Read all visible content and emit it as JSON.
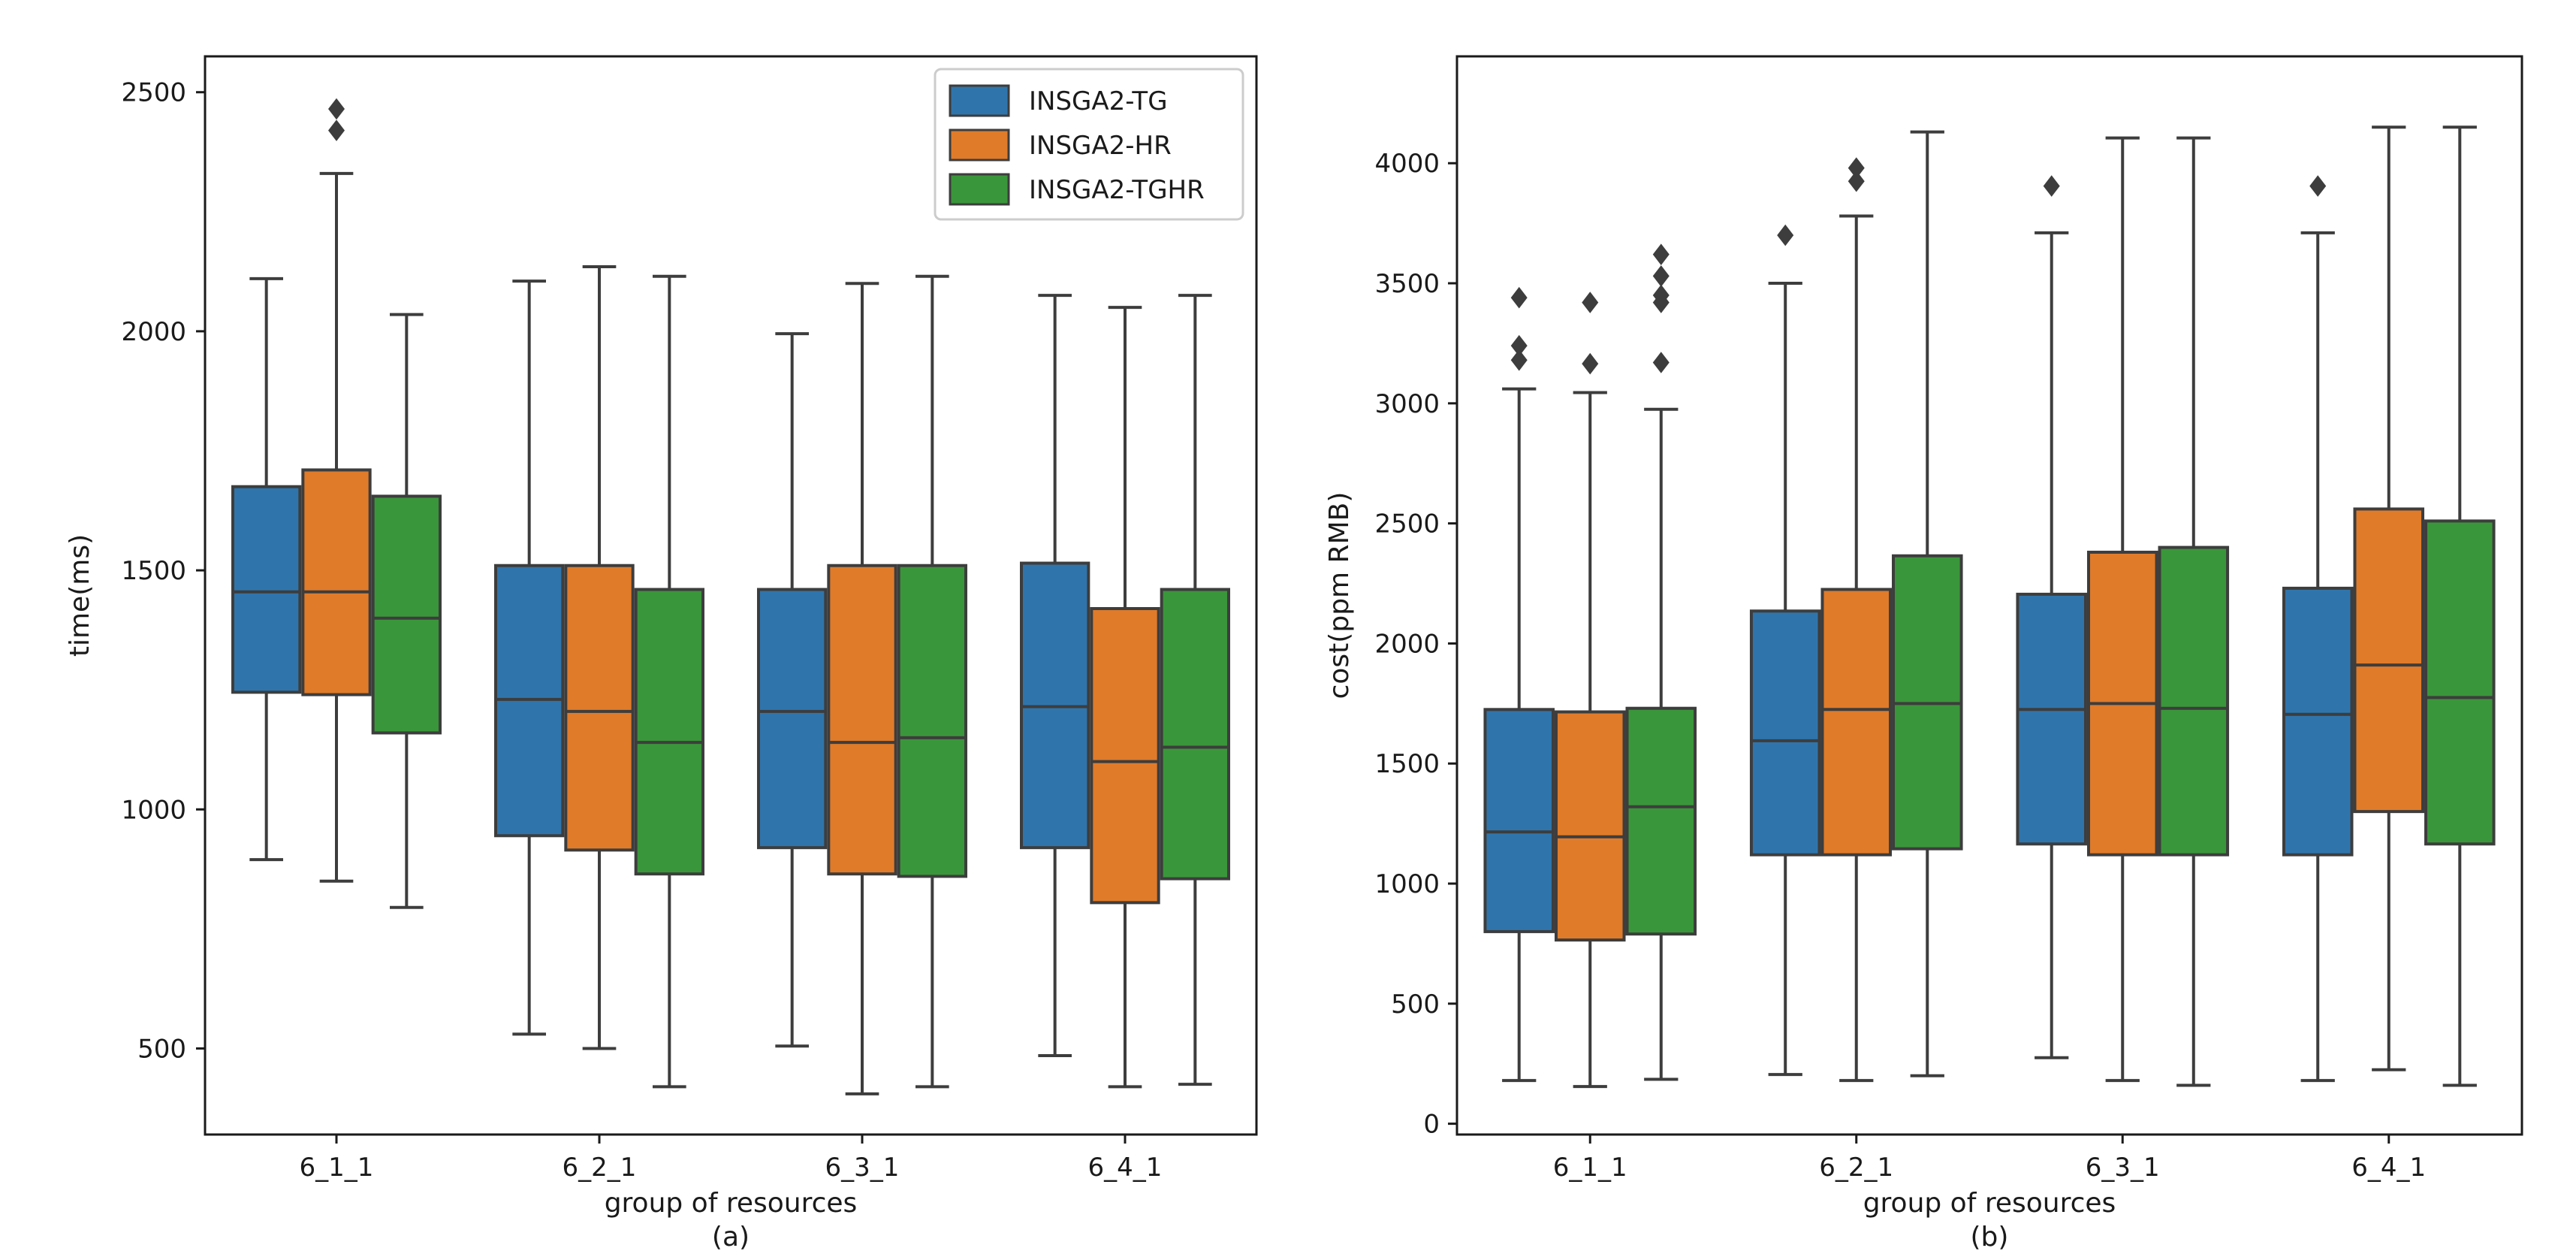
{
  "chart_data": [
    {
      "type": "box",
      "panel_label": "(a)",
      "xlabel": "group of resources",
      "ylabel": "time(ms)",
      "ylim": [
        320,
        2575
      ],
      "yticks": [
        500,
        1000,
        1500,
        2000,
        2500
      ],
      "categories": [
        "6_1_1",
        "6_2_1",
        "6_3_1",
        "6_4_1"
      ],
      "legend": {
        "position": "top-right",
        "entries": [
          "INSGA2-TG",
          "INSGA2-HR",
          "INSGA2-TGHR"
        ]
      },
      "series": [
        {
          "name": "INSGA2-TG",
          "color": "#2f75ac",
          "boxes": [
            {
              "whislo": 895,
              "q1": 1245,
              "med": 1455,
              "q3": 1675,
              "whishi": 2110,
              "fliers": []
            },
            {
              "whislo": 530,
              "q1": 945,
              "med": 1230,
              "q3": 1510,
              "whishi": 2105,
              "fliers": []
            },
            {
              "whislo": 505,
              "q1": 920,
              "med": 1205,
              "q3": 1460,
              "whishi": 1995,
              "fliers": []
            },
            {
              "whislo": 485,
              "q1": 920,
              "med": 1215,
              "q3": 1515,
              "whishi": 2075,
              "fliers": []
            }
          ]
        },
        {
          "name": "INSGA2-HR",
          "color": "#e07b2a",
          "boxes": [
            {
              "whislo": 850,
              "q1": 1240,
              "med": 1455,
              "q3": 1710,
              "whishi": 2330,
              "fliers": [
                2420,
                2465
              ]
            },
            {
              "whislo": 500,
              "q1": 915,
              "med": 1205,
              "q3": 1510,
              "whishi": 2135,
              "fliers": []
            },
            {
              "whislo": 405,
              "q1": 865,
              "med": 1140,
              "q3": 1510,
              "whishi": 2100,
              "fliers": []
            },
            {
              "whislo": 420,
              "q1": 805,
              "med": 1100,
              "q3": 1420,
              "whishi": 2050,
              "fliers": []
            }
          ]
        },
        {
          "name": "INSGA2-TGHR",
          "color": "#3a963a",
          "boxes": [
            {
              "whislo": 795,
              "q1": 1160,
              "med": 1400,
              "q3": 1655,
              "whishi": 2035,
              "fliers": []
            },
            {
              "whislo": 420,
              "q1": 865,
              "med": 1140,
              "q3": 1460,
              "whishi": 2115,
              "fliers": []
            },
            {
              "whislo": 420,
              "q1": 860,
              "med": 1150,
              "q3": 1510,
              "whishi": 2115,
              "fliers": []
            },
            {
              "whislo": 425,
              "q1": 855,
              "med": 1130,
              "q3": 1460,
              "whishi": 2075,
              "fliers": []
            }
          ]
        }
      ]
    },
    {
      "type": "box",
      "panel_label": "(b)",
      "xlabel": "group of resources",
      "ylabel": "cost(ppm RMB)",
      "ylim": [
        -45,
        4445
      ],
      "yticks": [
        0,
        500,
        1000,
        1500,
        2000,
        2500,
        3000,
        3500,
        4000
      ],
      "categories": [
        "6_1_1",
        "6_2_1",
        "6_3_1",
        "6_4_1"
      ],
      "series": [
        {
          "name": "INSGA2-TG",
          "color": "#2f75ac",
          "boxes": [
            {
              "whislo": 180,
              "q1": 800,
              "med": 1215,
              "q3": 1725,
              "whishi": 3060,
              "fliers": [
                3180,
                3240,
                3440
              ]
            },
            {
              "whislo": 205,
              "q1": 1120,
              "med": 1595,
              "q3": 2135,
              "whishi": 3500,
              "fliers": [
                3700
              ]
            },
            {
              "whislo": 275,
              "q1": 1165,
              "med": 1725,
              "q3": 2205,
              "whishi": 3710,
              "fliers": [
                3905
              ]
            },
            {
              "whislo": 180,
              "q1": 1120,
              "med": 1705,
              "q3": 2230,
              "whishi": 3710,
              "fliers": [
                3905
              ]
            }
          ]
        },
        {
          "name": "INSGA2-HR",
          "color": "#e07b2a",
          "boxes": [
            {
              "whislo": 155,
              "q1": 765,
              "med": 1195,
              "q3": 1715,
              "whishi": 3045,
              "fliers": [
                3165,
                3420
              ]
            },
            {
              "whislo": 180,
              "q1": 1120,
              "med": 1725,
              "q3": 2225,
              "whishi": 3780,
              "fliers": [
                3925,
                3980
              ]
            },
            {
              "whislo": 180,
              "q1": 1120,
              "med": 1750,
              "q3": 2380,
              "whishi": 4105,
              "fliers": []
            },
            {
              "whislo": 225,
              "q1": 1300,
              "med": 1910,
              "q3": 2560,
              "whishi": 4150,
              "fliers": []
            }
          ]
        },
        {
          "name": "INSGA2-TGHR",
          "color": "#3a963a",
          "boxes": [
            {
              "whislo": 185,
              "q1": 790,
              "med": 1320,
              "q3": 1730,
              "whishi": 2975,
              "fliers": [
                3170,
                3420,
                3450,
                3530,
                3620
              ]
            },
            {
              "whislo": 200,
              "q1": 1145,
              "med": 1750,
              "q3": 2365,
              "whishi": 4130,
              "fliers": []
            },
            {
              "whislo": 160,
              "q1": 1120,
              "med": 1730,
              "q3": 2400,
              "whishi": 4105,
              "fliers": []
            },
            {
              "whislo": 160,
              "q1": 1165,
              "med": 1775,
              "q3": 2510,
              "whishi": 4150,
              "fliers": []
            }
          ]
        }
      ]
    }
  ]
}
